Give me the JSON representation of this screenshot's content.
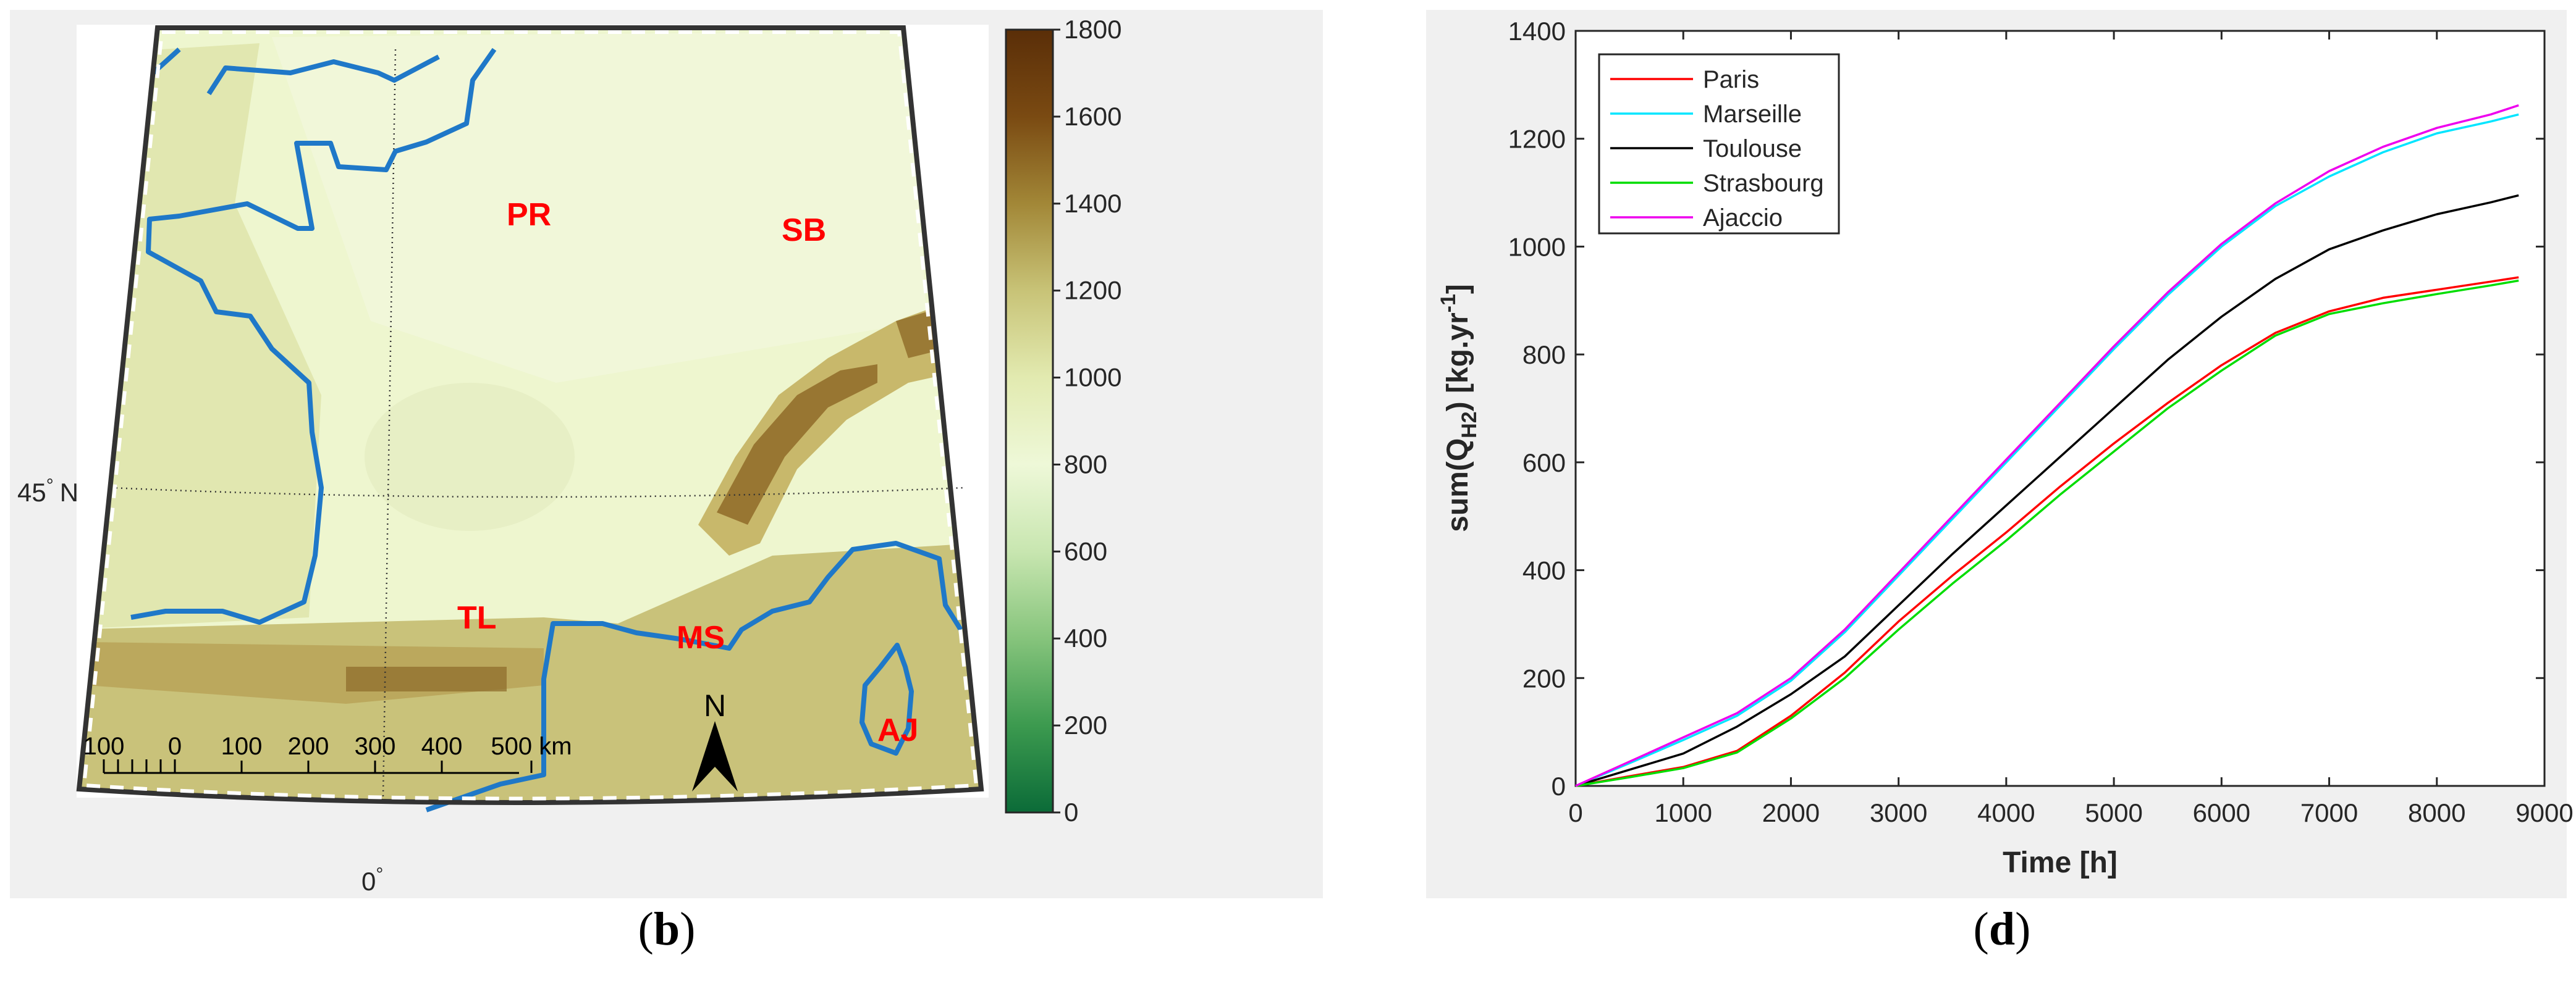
{
  "panel_b": {
    "caption_letter": "b",
    "colorbar_ticks": [
      "1800",
      "1600",
      "1400",
      "1200",
      "1000",
      "800",
      "600",
      "400",
      "200",
      "0"
    ],
    "colorbar_range": [
      0,
      1800
    ],
    "colorbar_colors": [
      "#0b6b38",
      "#3c9a4f",
      "#86c47c",
      "#c8e6b0",
      "#eef8d8",
      "#e2eab0",
      "#c8c377",
      "#a28737",
      "#7a4a12",
      "#5a2e08"
    ],
    "latitude_label": "45",
    "latitude_hemisphere": "N",
    "longitude_label": "0",
    "degree_symbol": "°",
    "scale_bar_labels": [
      "100",
      "0",
      "100",
      "200",
      "300",
      "400",
      "500 km"
    ],
    "north_arrow_label": "N",
    "city_labels": [
      {
        "code": "PR"
      },
      {
        "code": "SB"
      },
      {
        "code": "TL"
      },
      {
        "code": "MS"
      },
      {
        "code": "AJ"
      }
    ],
    "label_color": "#ff0000",
    "coastline_color": "#1f78c8"
  },
  "panel_d": {
    "caption_letter": "d",
    "chart_data": {
      "type": "line",
      "title": "",
      "xlabel": "Time [h]",
      "ylabel_main": "sum(Q",
      "ylabel_sub": "H2",
      "ylabel_unit": ") [kg.yr",
      "ylabel_sup": "-1",
      "ylabel_end": "]",
      "xlim": [
        0,
        9000
      ],
      "ylim": [
        0,
        1400
      ],
      "xticks": [
        0,
        1000,
        2000,
        3000,
        4000,
        5000,
        6000,
        7000,
        8000,
        9000
      ],
      "yticks": [
        0,
        200,
        400,
        600,
        800,
        1000,
        1200,
        1400
      ],
      "grid": false,
      "legend_position": "top-left",
      "x": [
        0,
        500,
        1000,
        1500,
        2000,
        2500,
        3000,
        3500,
        4000,
        4500,
        5000,
        5500,
        6000,
        6500,
        7000,
        7500,
        8000,
        8500,
        8760
      ],
      "series": [
        {
          "name": "Paris",
          "color": "#ff0000",
          "values": [
            0,
            18,
            35,
            65,
            130,
            210,
            305,
            390,
            470,
            555,
            635,
            710,
            780,
            840,
            880,
            905,
            920,
            935,
            943
          ]
        },
        {
          "name": "Marseille",
          "color": "#00e5ff",
          "values": [
            0,
            42,
            85,
            130,
            195,
            285,
            390,
            495,
            600,
            705,
            810,
            910,
            1000,
            1075,
            1130,
            1175,
            1210,
            1232,
            1245
          ]
        },
        {
          "name": "Toulouse",
          "color": "#000000",
          "values": [
            0,
            30,
            60,
            110,
            170,
            240,
            335,
            430,
            520,
            610,
            700,
            790,
            870,
            940,
            995,
            1030,
            1060,
            1082,
            1095
          ]
        },
        {
          "name": "Strasbourg",
          "color": "#00dd00",
          "values": [
            0,
            16,
            33,
            62,
            125,
            200,
            290,
            375,
            455,
            540,
            620,
            700,
            770,
            835,
            875,
            895,
            912,
            928,
            937
          ]
        },
        {
          "name": "Ajaccio",
          "color": "#ee00ee",
          "values": [
            0,
            45,
            90,
            135,
            200,
            290,
            395,
            500,
            605,
            710,
            815,
            915,
            1005,
            1080,
            1140,
            1185,
            1220,
            1245,
            1262
          ]
        }
      ]
    }
  }
}
